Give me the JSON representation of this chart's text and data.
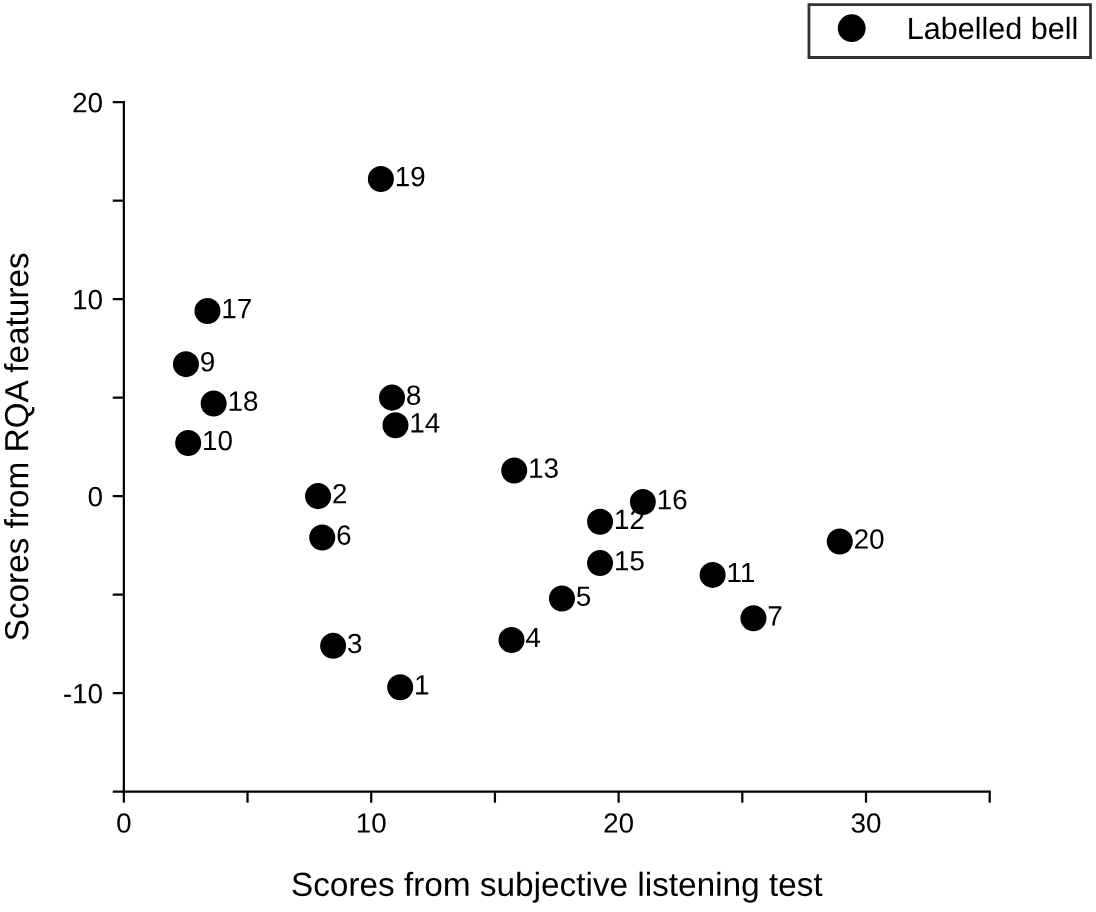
{
  "chart_data": {
    "type": "scatter",
    "xlabel": "Scores from subjective listening test",
    "ylabel": "Scores from RQA features",
    "series": [
      {
        "name": "Labelled bell",
        "color": "#000000",
        "x": [
          11.17,
          7.85,
          8.46,
          15.67,
          17.71,
          8.02,
          25.45,
          10.84,
          2.51,
          2.6,
          23.8,
          19.25,
          15.78,
          10.98,
          19.25,
          20.98,
          3.38,
          3.63,
          10.39,
          28.94
        ],
        "values": [
          -9.7,
          0,
          -7.6,
          -7.3,
          -5.2,
          -2.1,
          -6.2,
          5.0,
          6.7,
          2.7,
          -4.0,
          -1.3,
          1.3,
          3.6,
          -3.4,
          -0.3,
          9.4,
          4.7,
          16.1,
          -2.3
        ]
      }
    ],
    "annotations": [
      {
        "text": "1",
        "x": 11.17,
        "y": -9.7
      },
      {
        "text": "2",
        "x": 7.85,
        "y": 0
      },
      {
        "text": "3",
        "x": 8.46,
        "y": -7.6
      },
      {
        "text": "4",
        "x": 15.67,
        "y": -7.3
      },
      {
        "text": "5",
        "x": 17.71,
        "y": -5.2
      },
      {
        "text": "6",
        "x": 8.02,
        "y": -2.1
      },
      {
        "text": "7",
        "x": 25.45,
        "y": -6.2
      },
      {
        "text": "8",
        "x": 10.84,
        "y": 5.0
      },
      {
        "text": "9",
        "x": 2.51,
        "y": 6.7
      },
      {
        "text": "10",
        "x": 2.6,
        "y": 2.7
      },
      {
        "text": "11",
        "x": 23.8,
        "y": -4.0
      },
      {
        "text": "12",
        "x": 19.25,
        "y": -1.3
      },
      {
        "text": "13",
        "x": 15.78,
        "y": 1.3
      },
      {
        "text": "14",
        "x": 10.98,
        "y": 3.6
      },
      {
        "text": "15",
        "x": 19.25,
        "y": -3.4
      },
      {
        "text": "16",
        "x": 20.98,
        "y": -0.3
      },
      {
        "text": "17",
        "x": 3.38,
        "y": 9.4
      },
      {
        "text": "18",
        "x": 3.63,
        "y": 4.7
      },
      {
        "text": "19",
        "x": 10.39,
        "y": 16.1
      },
      {
        "text": "20",
        "x": 28.94,
        "y": -2.3
      }
    ],
    "xlim": [
      0,
      35
    ],
    "ylim": [
      -15,
      20
    ],
    "xticks": [
      0,
      {
        "value": 5,
        "label": null
      },
      10,
      {
        "value": 15,
        "label": null
      },
      20,
      {
        "value": 25,
        "label": null
      },
      30,
      {
        "value": 35,
        "label": null
      }
    ],
    "yticks": [
      {
        "value": -15,
        "label": null
      },
      -10,
      {
        "value": -5,
        "label": null
      },
      0,
      {
        "value": 5,
        "label": null
      },
      10,
      {
        "value": 15,
        "label": null
      },
      20
    ],
    "marker": "circle",
    "legend": "top right",
    "grid": false
  }
}
